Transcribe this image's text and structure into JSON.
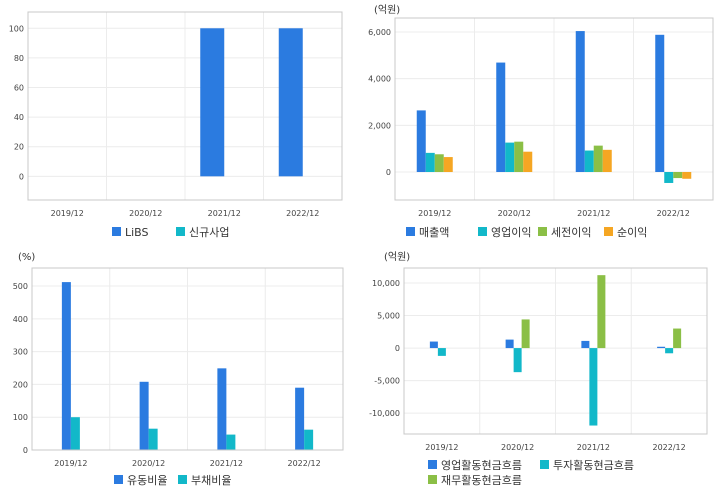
{
  "chart_data": [
    {
      "type": "bar",
      "categories": [
        "2019/12",
        "2020/12",
        "2021/12",
        "2022/12"
      ],
      "series": [
        {
          "name": "LiBS",
          "values": [
            0,
            0,
            100,
            100
          ]
        },
        {
          "name": "신규사업",
          "values": [
            0,
            0,
            0,
            0
          ]
        }
      ],
      "yticks": [
        0,
        20,
        40,
        60,
        80,
        100
      ],
      "ylim": [
        -16,
        111
      ],
      "unit": "",
      "grid": true,
      "legend": "bottom"
    },
    {
      "type": "bar",
      "categories": [
        "2019/12",
        "2020/12",
        "2021/12",
        "2022/12"
      ],
      "series": [
        {
          "name": "매출액",
          "values": [
            2640,
            4690,
            6040,
            5880
          ]
        },
        {
          "name": "영업이익",
          "values": [
            820,
            1260,
            920,
            -470
          ]
        },
        {
          "name": "세전이익",
          "values": [
            760,
            1300,
            1130,
            -260
          ]
        },
        {
          "name": "순이익",
          "values": [
            640,
            870,
            950,
            -290
          ]
        }
      ],
      "yticks": [
        0,
        2000,
        4000,
        6000
      ],
      "yticklabels": [
        "0",
        "2,000",
        "4,000",
        "6,000"
      ],
      "ylim": [
        -1200,
        6600
      ],
      "unit": "(억원)",
      "grid": true,
      "legend": "bottom"
    },
    {
      "type": "bar",
      "categories": [
        "2019/12",
        "2020/12",
        "2021/12",
        "2022/12"
      ],
      "series": [
        {
          "name": "유동비율",
          "values": [
            512,
            208,
            249,
            190
          ]
        },
        {
          "name": "부채비율",
          "values": [
            100,
            65,
            47,
            62
          ]
        }
      ],
      "yticks": [
        0,
        100,
        200,
        300,
        400,
        500
      ],
      "ylim": [
        0,
        555
      ],
      "unit": "(%)",
      "grid": true,
      "legend": "bottom"
    },
    {
      "type": "bar",
      "categories": [
        "2019/12",
        "2020/12",
        "2021/12",
        "2022/12"
      ],
      "series": [
        {
          "name": "영업활동현금흐름",
          "values": [
            1000,
            1300,
            1100,
            200
          ]
        },
        {
          "name": "투자활동현금흐름",
          "values": [
            -1200,
            -3700,
            -11900,
            -800
          ]
        },
        {
          "name": "재무활동현금흐름",
          "values": [
            0,
            4400,
            11200,
            3000
          ]
        }
      ],
      "yticks": [
        -10000,
        -5000,
        0,
        5000,
        10000
      ],
      "yticklabels": [
        "-10,000",
        "-5,000",
        "0",
        "5,000",
        "10,000"
      ],
      "ylim": [
        -13200,
        12300
      ],
      "unit": "(억원)",
      "grid": true,
      "legend": "bottom"
    }
  ],
  "colors": {
    "series": [
      "#2b7be0",
      "#12b8c9",
      "#8bbf46",
      "#f5a623"
    ],
    "grid": "#ececec",
    "frame": "#c8c8c8"
  }
}
